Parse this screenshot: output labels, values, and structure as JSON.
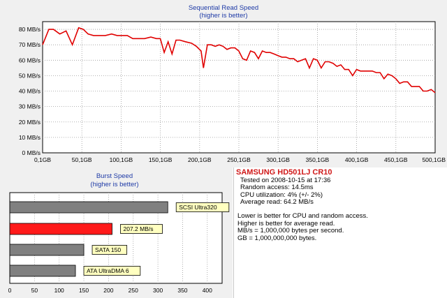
{
  "chart_data": [
    {
      "type": "line",
      "title": "Sequential Read Speed",
      "subtitle": "(higher is better)",
      "x_tick_labels": [
        "0,1GB",
        "50,1GB",
        "100,1GB",
        "150,1GB",
        "200,1GB",
        "250,1GB",
        "300,1GB",
        "350,1GB",
        "400,1GB",
        "450,1GB",
        "500,1GB"
      ],
      "x_ticks": [
        0.1,
        50.1,
        100.1,
        150.1,
        200.1,
        250.1,
        300.1,
        350.1,
        400.1,
        450.1,
        500.1
      ],
      "y_tick_labels": [
        "0 MB/s",
        "10 MB/s",
        "20 MB/s",
        "30 MB/s",
        "40 MB/s",
        "50 MB/s",
        "60 MB/s",
        "70 MB/s",
        "80 MB/s"
      ],
      "y_ticks": [
        0,
        10,
        20,
        30,
        40,
        50,
        60,
        70,
        80
      ],
      "xlim": [
        0.1,
        500.1
      ],
      "ylim": [
        0,
        85
      ],
      "grid": true,
      "line_color": "#e00000",
      "series": [
        {
          "x": [
            0.1,
            8,
            14,
            22,
            30,
            38,
            46,
            52,
            58,
            65,
            72,
            80,
            88,
            95,
            100,
            108,
            115,
            122,
            130,
            138,
            145,
            150,
            155,
            160,
            165,
            170,
            175,
            182,
            190,
            196,
            202,
            205,
            210,
            215,
            220,
            225,
            230,
            235,
            240,
            245,
            250,
            255,
            260,
            265,
            270,
            275,
            280,
            285,
            290,
            295,
            300,
            305,
            310,
            315,
            320,
            325,
            330,
            335,
            340,
            345,
            350,
            355,
            360,
            365,
            370,
            375,
            380,
            385,
            390,
            395,
            400,
            405,
            410,
            415,
            420,
            425,
            430,
            435,
            440,
            445,
            450,
            455,
            460,
            465,
            470,
            475,
            480,
            485,
            490,
            495,
            500.1
          ],
          "y": [
            70,
            80,
            80,
            77,
            79,
            70,
            81,
            80,
            77,
            76,
            76,
            76,
            77,
            76,
            76,
            76,
            74,
            74,
            74,
            75,
            74,
            74,
            65,
            72,
            64,
            73,
            73,
            72,
            71,
            69,
            66,
            55,
            70,
            70,
            69,
            70,
            69,
            67,
            68,
            68,
            66,
            61,
            60,
            66,
            65,
            61,
            66,
            65,
            65,
            64,
            63,
            62,
            62,
            61,
            61,
            59,
            60,
            61,
            55,
            61,
            60,
            55,
            59,
            59,
            58,
            56,
            57,
            54,
            54,
            50,
            54,
            53,
            53,
            53,
            53,
            52,
            52,
            48,
            51,
            50,
            48,
            45,
            46,
            46,
            43,
            43,
            43,
            40,
            40,
            41,
            39
          ]
        }
      ]
    },
    {
      "type": "bar",
      "orientation": "horizontal",
      "title": "Burst Speed",
      "subtitle": "(higher is better)",
      "categories": [
        "SCSI Ultra320",
        "207.2 MB/s",
        "SATA 150",
        "ATA UltraDMA 6"
      ],
      "values": [
        320,
        207.2,
        150,
        133
      ],
      "colors": [
        "#808080",
        "#ff1a1a",
        "#808080",
        "#808080"
      ],
      "x_tick_labels": [
        "0",
        "50",
        "100",
        "150",
        "200",
        "250",
        "300",
        "350",
        "400"
      ],
      "x_ticks": [
        0,
        50,
        100,
        150,
        200,
        250,
        300,
        350,
        400
      ],
      "xlim": [
        0,
        430
      ],
      "grid": true,
      "label_bg": "#ffffc0"
    }
  ],
  "info": {
    "title": "SAMSUNG HD501LJ CR10",
    "lines": [
      "Tested on 2008-10-15 at 17:36",
      "Random access: 14.5ms",
      "CPU utilization: 4% (+/- 2%)",
      "Average read: 64.2 MB/s"
    ],
    "notes": [
      "Lower is better for CPU and random access.",
      "Higher is better for average read.",
      "MB/s = 1,000,000 bytes per second.",
      "GB = 1,000,000,000 bytes."
    ]
  }
}
